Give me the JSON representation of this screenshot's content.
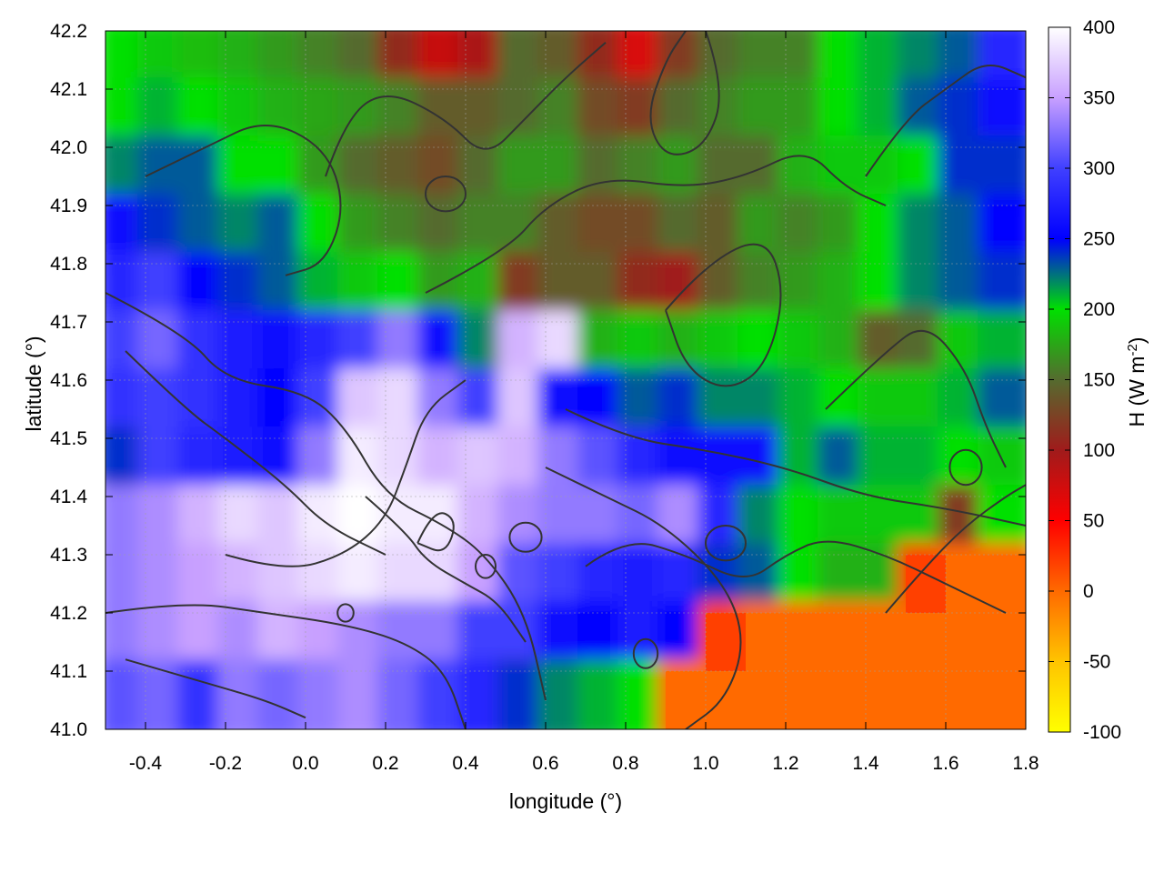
{
  "chart_data": {
    "type": "heatmap",
    "title": "",
    "xlabel": "longitude (°)",
    "ylabel": "latitude (°)",
    "colorbar_label": "H (W m-2)",
    "colorbar_label_main": "H (W m",
    "colorbar_label_sup": "-2",
    "colorbar_label_end": ")",
    "xlim": [
      -0.5,
      1.8
    ],
    "ylim": [
      41.0,
      42.2
    ],
    "x_ticks": [
      "-0.4",
      "-0.2",
      "0.0",
      "0.2",
      "0.4",
      "0.6",
      "0.8",
      "1.0",
      "1.2",
      "1.4",
      "1.6",
      "1.8"
    ],
    "y_ticks": [
      "41.0",
      "41.1",
      "41.2",
      "41.3",
      "41.4",
      "41.5",
      "41.6",
      "41.7",
      "41.8",
      "41.9",
      "42.0",
      "42.1",
      "42.2"
    ],
    "colorbar_range": [
      -100,
      400
    ],
    "colorbar_ticks": [
      "-100",
      "-50",
      "0",
      "50",
      "100",
      "150",
      "200",
      "250",
      "300",
      "350",
      "400"
    ],
    "colormap": [
      {
        "value": -100,
        "color": "#ffff00"
      },
      {
        "value": -50,
        "color": "#ffc400"
      },
      {
        "value": 0,
        "color": "#ff6a00"
      },
      {
        "value": 50,
        "color": "#ff0000"
      },
      {
        "value": 100,
        "color": "#a01b1b"
      },
      {
        "value": 150,
        "color": "#556b2f"
      },
      {
        "value": 200,
        "color": "#00e000"
      },
      {
        "value": 250,
        "color": "#0000ff"
      },
      {
        "value": 300,
        "color": "#4040ff"
      },
      {
        "value": 350,
        "color": "#c8a0ff"
      },
      {
        "value": 400,
        "color": "#ffffff"
      }
    ],
    "grid": true,
    "contours": true,
    "field": {
      "lon": [
        -0.45,
        -0.35,
        -0.25,
        -0.15,
        -0.05,
        0.05,
        0.15,
        0.25,
        0.35,
        0.45,
        0.55,
        0.65,
        0.75,
        0.85,
        0.95,
        1.05,
        1.15,
        1.25,
        1.35,
        1.45,
        1.55,
        1.65,
        1.75
      ],
      "lat": [
        42.15,
        42.05,
        41.95,
        41.85,
        41.75,
        41.65,
        41.55,
        41.45,
        41.35,
        41.25,
        41.15,
        41.05
      ],
      "H": [
        [
          200,
          190,
          185,
          180,
          170,
          160,
          150,
          110,
          80,
          95,
          150,
          140,
          110,
          70,
          120,
          150,
          160,
          160,
          200,
          210,
          220,
          230,
          280
        ],
        [
          200,
          210,
          200,
          190,
          180,
          175,
          170,
          160,
          140,
          140,
          150,
          160,
          130,
          120,
          150,
          160,
          170,
          170,
          200,
          210,
          230,
          240,
          260
        ],
        [
          220,
          230,
          230,
          200,
          200,
          170,
          150,
          140,
          130,
          150,
          170,
          170,
          150,
          160,
          170,
          150,
          150,
          180,
          190,
          190,
          200,
          240,
          240
        ],
        [
          260,
          240,
          230,
          220,
          230,
          200,
          170,
          160,
          150,
          160,
          160,
          140,
          130,
          130,
          150,
          140,
          170,
          160,
          170,
          200,
          220,
          230,
          250
        ],
        [
          280,
          300,
          250,
          240,
          230,
          210,
          190,
          200,
          170,
          180,
          120,
          140,
          140,
          110,
          100,
          140,
          160,
          170,
          180,
          200,
          220,
          230,
          240
        ],
        [
          300,
          320,
          290,
          270,
          260,
          280,
          300,
          330,
          260,
          220,
          360,
          380,
          180,
          190,
          180,
          190,
          200,
          190,
          180,
          140,
          150,
          190,
          210
        ],
        [
          290,
          300,
          290,
          270,
          250,
          300,
          370,
          380,
          330,
          300,
          370,
          260,
          250,
          230,
          240,
          220,
          220,
          210,
          200,
          190,
          190,
          210,
          230
        ],
        [
          240,
          300,
          280,
          270,
          260,
          330,
          390,
          380,
          360,
          370,
          360,
          330,
          310,
          280,
          260,
          260,
          260,
          210,
          230,
          210,
          210,
          200,
          190
        ],
        [
          330,
          340,
          360,
          380,
          370,
          390,
          400,
          390,
          390,
          360,
          340,
          330,
          330,
          320,
          340,
          280,
          220,
          200,
          190,
          190,
          190,
          120,
          200
        ],
        [
          330,
          340,
          350,
          360,
          370,
          380,
          390,
          380,
          380,
          350,
          310,
          300,
          280,
          270,
          280,
          240,
          230,
          200,
          180,
          180,
          20,
          0,
          0
        ],
        [
          330,
          340,
          350,
          340,
          360,
          350,
          340,
          330,
          330,
          300,
          300,
          260,
          250,
          270,
          250,
          20,
          0,
          0,
          0,
          0,
          0,
          0,
          0
        ],
        [
          310,
          320,
          290,
          330,
          320,
          330,
          340,
          320,
          300,
          280,
          240,
          220,
          210,
          200,
          0,
          0,
          0,
          0,
          0,
          0,
          0,
          0,
          0
        ]
      ]
    },
    "contour_lines": [
      [
        [
          -0.5,
          41.75
        ],
        [
          -0.3,
          41.68
        ],
        [
          -0.2,
          41.6
        ],
        [
          0.0,
          41.58
        ],
        [
          0.1,
          41.52
        ],
        [
          0.2,
          41.4
        ],
        [
          0.35,
          41.35
        ],
        [
          0.45,
          41.3
        ],
        [
          0.55,
          41.2
        ],
        [
          0.6,
          41.05
        ]
      ],
      [
        [
          -0.45,
          41.65
        ],
        [
          -0.3,
          41.55
        ],
        [
          -0.2,
          41.5
        ],
        [
          -0.05,
          41.42
        ],
        [
          0.05,
          41.35
        ],
        [
          0.2,
          41.3
        ]
      ],
      [
        [
          -0.2,
          41.3
        ],
        [
          -0.05,
          41.27
        ],
        [
          0.1,
          41.3
        ],
        [
          0.2,
          41.36
        ],
        [
          0.25,
          41.45
        ],
        [
          0.3,
          41.55
        ],
        [
          0.4,
          41.6
        ]
      ],
      [
        [
          -0.5,
          41.2
        ],
        [
          -0.3,
          41.22
        ],
        [
          -0.1,
          41.2
        ],
        [
          0.1,
          41.18
        ],
        [
          0.25,
          41.15
        ],
        [
          0.35,
          41.1
        ],
        [
          0.4,
          41.0
        ]
      ],
      [
        [
          -0.45,
          41.12
        ],
        [
          -0.25,
          41.08
        ],
        [
          -0.1,
          41.05
        ],
        [
          0.0,
          41.02
        ]
      ],
      [
        [
          0.15,
          41.4
        ],
        [
          0.25,
          41.34
        ],
        [
          0.3,
          41.29
        ],
        [
          0.4,
          41.25
        ],
        [
          0.48,
          41.22
        ],
        [
          0.55,
          41.15
        ]
      ],
      [
        [
          0.28,
          41.32
        ],
        [
          0.32,
          41.38
        ],
        [
          0.38,
          41.36
        ],
        [
          0.35,
          41.3
        ],
        [
          0.28,
          41.32
        ]
      ],
      [
        [
          0.6,
          41.45
        ],
        [
          0.75,
          41.4
        ],
        [
          0.9,
          41.35
        ],
        [
          1.05,
          41.25
        ],
        [
          1.1,
          41.15
        ],
        [
          1.05,
          41.05
        ],
        [
          0.95,
          41.0
        ]
      ],
      [
        [
          0.7,
          41.28
        ],
        [
          0.8,
          41.33
        ],
        [
          0.95,
          41.3
        ],
        [
          1.1,
          41.25
        ],
        [
          1.2,
          41.3
        ],
        [
          1.3,
          41.33
        ],
        [
          1.45,
          41.3
        ],
        [
          1.6,
          41.25
        ],
        [
          1.75,
          41.2
        ]
      ],
      [
        [
          0.65,
          41.55
        ],
        [
          0.8,
          41.5
        ],
        [
          1.0,
          41.48
        ],
        [
          1.2,
          41.45
        ],
        [
          1.4,
          41.4
        ],
        [
          1.6,
          41.38
        ],
        [
          1.8,
          41.35
        ]
      ],
      [
        [
          0.9,
          41.72
        ],
        [
          1.0,
          41.8
        ],
        [
          1.15,
          41.85
        ],
        [
          1.2,
          41.75
        ],
        [
          1.15,
          41.62
        ],
        [
          1.05,
          41.58
        ],
        [
          0.95,
          41.62
        ],
        [
          0.9,
          41.72
        ]
      ],
      [
        [
          0.3,
          41.75
        ],
        [
          0.5,
          41.82
        ],
        [
          0.6,
          41.9
        ],
        [
          0.75,
          41.95
        ],
        [
          0.95,
          41.93
        ],
        [
          1.1,
          41.95
        ],
        [
          1.25,
          42.0
        ],
        [
          1.35,
          41.93
        ],
        [
          1.45,
          41.9
        ]
      ],
      [
        [
          0.05,
          41.95
        ],
        [
          0.1,
          42.05
        ],
        [
          0.2,
          42.1
        ],
        [
          0.35,
          42.05
        ],
        [
          0.45,
          41.98
        ],
        [
          0.55,
          42.05
        ],
        [
          0.65,
          42.12
        ],
        [
          0.75,
          42.18
        ]
      ],
      [
        [
          -0.4,
          41.95
        ],
        [
          -0.25,
          42.0
        ],
        [
          -0.1,
          42.05
        ],
        [
          0.05,
          42.0
        ],
        [
          0.1,
          41.9
        ],
        [
          0.05,
          41.8
        ],
        [
          -0.05,
          41.78
        ]
      ],
      [
        [
          1.4,
          41.95
        ],
        [
          1.5,
          42.05
        ],
        [
          1.6,
          42.1
        ],
        [
          1.7,
          42.15
        ],
        [
          1.8,
          42.12
        ]
      ],
      [
        [
          1.3,
          41.55
        ],
        [
          1.45,
          41.65
        ],
        [
          1.55,
          41.7
        ],
        [
          1.65,
          41.62
        ],
        [
          1.7,
          41.52
        ],
        [
          1.75,
          41.45
        ]
      ],
      [
        [
          1.0,
          42.2
        ],
        [
          1.05,
          42.1
        ],
        [
          1.0,
          42.0
        ],
        [
          0.9,
          41.98
        ],
        [
          0.85,
          42.05
        ],
        [
          0.9,
          42.15
        ],
        [
          0.95,
          42.2
        ]
      ],
      [
        [
          1.45,
          41.2
        ],
        [
          1.55,
          41.28
        ],
        [
          1.65,
          41.35
        ],
        [
          1.75,
          41.4
        ],
        [
          1.8,
          41.42
        ]
      ]
    ],
    "small_contour_loops": [
      [
        0.55,
        41.33,
        0.04,
        0.025
      ],
      [
        0.45,
        41.28,
        0.025,
        0.02
      ],
      [
        1.05,
        41.32,
        0.05,
        0.03
      ],
      [
        0.85,
        41.13,
        0.03,
        0.025
      ],
      [
        0.1,
        41.2,
        0.02,
        0.015
      ],
      [
        1.65,
        41.45,
        0.04,
        0.03
      ],
      [
        0.35,
        41.92,
        0.05,
        0.03
      ]
    ]
  }
}
